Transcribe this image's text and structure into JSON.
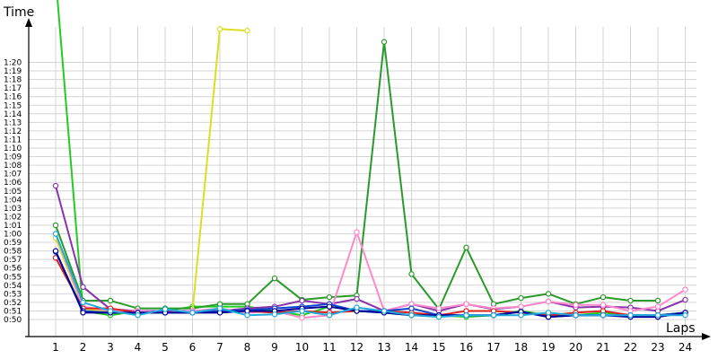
{
  "chart_data": {
    "type": "line",
    "xlabel": "Laps",
    "ylabel": "Time",
    "x": [
      1,
      2,
      3,
      4,
      5,
      6,
      7,
      8,
      9,
      10,
      11,
      12,
      13,
      14,
      15,
      16,
      17,
      18,
      19,
      20,
      21,
      22,
      23,
      24
    ],
    "y_tick_labels": [
      "0:50",
      "0:51",
      "0:52",
      "0:53",
      "0:54",
      "0:55",
      "0:56",
      "0:57",
      "0:58",
      "0:59",
      "1:00",
      "1:01",
      "1:02",
      "1:03",
      "1:04",
      "1:05",
      "1:06",
      "1:07",
      "1:08",
      "1:09",
      "1:10",
      "1:11",
      "1:12",
      "1:13",
      "1:14",
      "1:15",
      "1:16",
      "1:17",
      "1:18",
      "1:19",
      "1:20"
    ],
    "ylim_seconds": [
      49,
      84
    ],
    "grid": true,
    "series": [
      {
        "color": "#22cc22",
        "values": [
          90,
          51,
          50.5,
          51,
          51,
          51.5,
          51.5,
          51.5,
          51,
          50.5,
          51.5,
          51,
          50.8,
          50.5,
          50.5,
          50.3,
          50.5,
          51,
          50.5,
          50.5,
          50.8,
          50.5,
          50.5,
          50.8
        ]
      },
      {
        "color": "#2a9a2a",
        "values": [
          61,
          52.2,
          52.2,
          51.3,
          51.3,
          51.3,
          51.8,
          51.8,
          54.8,
          52.3,
          52.6,
          52.8,
          82.4,
          55.3,
          51.2,
          58.4,
          51.8,
          52.5,
          53,
          51.8,
          52.6,
          52.2,
          52.2,
          null
        ]
      },
      {
        "color": "#dddd22",
        "values": [
          59.5,
          51.3,
          50.8,
          50.8,
          50.8,
          51,
          83.9,
          83.7,
          null,
          null,
          null,
          null,
          null,
          null,
          null,
          null,
          null,
          null,
          null,
          null,
          null,
          null,
          null,
          null
        ]
      },
      {
        "color": "#8833aa",
        "values": [
          65.6,
          53.8,
          51.2,
          51,
          51,
          51,
          51,
          51.3,
          51.5,
          52.2,
          51.8,
          52.4,
          51,
          51.8,
          51,
          51.8,
          51.2,
          51.5,
          52.1,
          51.4,
          51.5,
          51.4,
          51,
          52.3
        ]
      },
      {
        "color": "#ff88cc",
        "values": [
          60,
          51.5,
          51,
          51,
          50.8,
          51,
          51.3,
          50.8,
          51,
          50.2,
          50.5,
          60.2,
          51,
          51.8,
          51.3,
          51.8,
          51.3,
          51.5,
          52.1,
          51.7,
          51.7,
          51,
          51.5,
          53.5
        ]
      },
      {
        "color": "#dd2222",
        "values": [
          57.2,
          51.3,
          51.3,
          50.8,
          50.8,
          50.8,
          51,
          51,
          50.8,
          51,
          50.8,
          51,
          51,
          50.8,
          50.5,
          51,
          51,
          50.8,
          50.5,
          50.8,
          51,
          50.5,
          50.3,
          50.8
        ]
      },
      {
        "color": "#1144cc",
        "values": [
          57.9,
          51,
          50.8,
          50.8,
          50.8,
          50.8,
          51,
          51.1,
          51.3,
          51.5,
          51.8,
          51,
          51,
          51.3,
          50.5,
          50.5,
          50.5,
          50.9,
          50.3,
          50.5,
          50.5,
          50.5,
          50.5,
          50.8
        ]
      },
      {
        "color": "#000099",
        "values": [
          58,
          50.8,
          50.8,
          50.8,
          50.8,
          50.8,
          50.8,
          51,
          51,
          51.3,
          51.5,
          51,
          50.8,
          50.5,
          50.5,
          50.5,
          50.5,
          50.9,
          50.3,
          50.5,
          50.5,
          50.3,
          50.3,
          50.8
        ]
      },
      {
        "color": "#22aadd",
        "values": [
          60,
          52,
          51,
          50.5,
          51.2,
          50.8,
          51.3,
          50.5,
          50.6,
          51,
          50.5,
          51.4,
          51,
          50.5,
          50.3,
          50.5,
          50.5,
          50.5,
          50.8,
          50.5,
          50.5,
          50.5,
          50.5,
          50.5
        ]
      }
    ]
  }
}
